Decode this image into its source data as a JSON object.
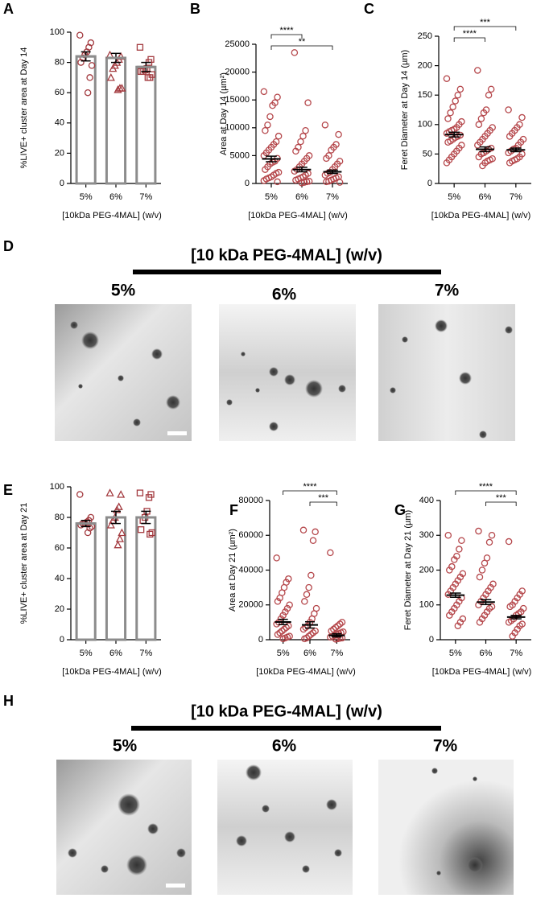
{
  "chart_data": [
    {
      "type": "bar",
      "panel": "A",
      "ylabel": "%LIVE+ cluster area at Day 14",
      "xlabel": "[10kDa PEG-4MAL] (w/v)",
      "categories": [
        "5%",
        "6%",
        "7%"
      ],
      "values": [
        84,
        83,
        77
      ],
      "errors": [
        3,
        3,
        3
      ],
      "points": [
        [
          98,
          93,
          90,
          87,
          85,
          83,
          80,
          78,
          70,
          60
        ],
        [
          85,
          84,
          82,
          80,
          78,
          76,
          70,
          63,
          63,
          62
        ],
        [
          90,
          82,
          80,
          76,
          75,
          74,
          74,
          72,
          70,
          70
        ]
      ],
      "markers": [
        "circle",
        "triangle",
        "square"
      ],
      "color": "#a33a3f",
      "bar_color": "#8c8c8c",
      "ylim": [
        0,
        100
      ],
      "yticks": [
        0,
        20,
        40,
        60,
        80,
        100
      ]
    },
    {
      "type": "dot",
      "panel": "B",
      "ylabel": "Area at Day 14 (µm²)",
      "xlabel": "[10kDa PEG-4MAL] (w/v)",
      "categories": [
        "5%",
        "6%",
        "7%"
      ],
      "values": [
        4400,
        2500,
        2100
      ],
      "errors": [
        500,
        400,
        300
      ],
      "points": [
        [
          16500,
          15500,
          14500,
          14000,
          12000,
          10500,
          9500,
          8500,
          7500,
          7000,
          6500,
          6000,
          5500,
          5000,
          4500,
          4000,
          3800,
          3500,
          3000,
          2500,
          2000,
          1800,
          1500,
          1200,
          1000,
          800,
          500,
          300
        ],
        [
          23500,
          14500,
          9500,
          8500,
          7500,
          6500,
          5800,
          5000,
          4500,
          4000,
          3500,
          3000,
          2500,
          2200,
          1800,
          1500,
          1200,
          1000,
          800,
          600,
          400,
          300,
          200,
          100
        ],
        [
          10500,
          8800,
          7000,
          6500,
          6000,
          5000,
          4500,
          4000,
          3500,
          3000,
          2500,
          2000,
          1800,
          1500,
          1200,
          1000,
          800,
          600,
          400,
          300,
          200
        ]
      ],
      "marker": "circle",
      "color": "#b5474b",
      "brackets": [
        {
          "between": [
            "5%",
            "6%"
          ],
          "label": "****"
        },
        {
          "between": [
            "5%",
            "7%"
          ],
          "label": "**"
        }
      ],
      "ylim": [
        0,
        25000
      ],
      "yticks": [
        0,
        5000,
        10000,
        15000,
        20000,
        25000
      ]
    },
    {
      "type": "dot",
      "panel": "C",
      "ylabel": "Feret Diameter at Day 14 (µm)",
      "xlabel": "[10kDa PEG-4MAL] (w/v)",
      "categories": [
        "5%",
        "6%",
        "7%"
      ],
      "values": [
        83,
        58,
        57
      ],
      "errors": [
        4,
        4,
        3
      ],
      "points": [
        [
          178,
          160,
          150,
          140,
          130,
          120,
          110,
          105,
          100,
          95,
          92,
          90,
          88,
          85,
          82,
          80,
          78,
          75,
          72,
          70,
          65,
          60,
          55,
          50,
          45,
          40,
          35
        ],
        [
          192,
          160,
          150,
          125,
          120,
          110,
          100,
          95,
          90,
          85,
          80,
          75,
          70,
          65,
          60,
          58,
          55,
          52,
          50,
          45,
          42,
          40,
          38,
          35,
          30
        ],
        [
          125,
          112,
          100,
          95,
          90,
          85,
          80,
          75,
          70,
          65,
          60,
          58,
          55,
          52,
          50,
          45,
          42,
          40,
          38,
          35
        ]
      ],
      "marker": "circle",
      "color": "#b5474b",
      "brackets": [
        {
          "between": [
            "5%",
            "7%"
          ],
          "label": "***"
        },
        {
          "between": [
            "5%",
            "6%"
          ],
          "label": "****"
        }
      ],
      "ylim": [
        0,
        250
      ],
      "yticks": [
        0,
        50,
        100,
        150,
        200,
        250
      ]
    },
    {
      "type": "bar",
      "panel": "E",
      "ylabel": "%LIVE+ cluster area at Day 21",
      "xlabel": "[10kDa PEG-4MAL] (w/v)",
      "categories": [
        "5%",
        "6%",
        "7%"
      ],
      "values": [
        76,
        80,
        80
      ],
      "errors": [
        2,
        4,
        4
      ],
      "points": [
        [
          95,
          80,
          78,
          77,
          76,
          76,
          75,
          74,
          73,
          70
        ],
        [
          96,
          95,
          87,
          85,
          80,
          78,
          75,
          70,
          66,
          62
        ],
        [
          96,
          95,
          93,
          84,
          80,
          78,
          72,
          70,
          69
        ]
      ],
      "markers": [
        "circle",
        "triangle",
        "square"
      ],
      "color": "#a33a3f",
      "bar_color": "#8c8c8c",
      "ylim": [
        0,
        100
      ],
      "yticks": [
        0,
        20,
        40,
        60,
        80,
        100
      ]
    },
    {
      "type": "dot",
      "panel": "F",
      "ylabel": "Area at Day 21 (µm²)",
      "xlabel": "[10kDa PEG-4MAL] (w/v)",
      "categories": [
        "5%",
        "6%",
        "7%"
      ],
      "values": [
        10200,
        8500,
        2500
      ],
      "errors": [
        1500,
        1800,
        900
      ],
      "points": [
        [
          47000,
          35000,
          33000,
          30000,
          27000,
          24000,
          22000,
          20000,
          18000,
          16000,
          14000,
          12000,
          10000,
          9000,
          8000,
          7000,
          6000,
          5000,
          4000,
          3000,
          2000,
          1500,
          1000,
          500
        ],
        [
          63000,
          62000,
          57000,
          37000,
          30000,
          26000,
          22000,
          18000,
          15000,
          12000,
          10000,
          8000,
          7000,
          6000,
          5000,
          4000,
          3000,
          2000,
          1000,
          500
        ],
        [
          50000,
          10000,
          9000,
          8000,
          7000,
          6000,
          5000,
          4500,
          4000,
          3500,
          3000,
          2500,
          2000,
          1500,
          1000,
          800,
          500,
          300
        ]
      ],
      "marker": "circle",
      "color": "#b5474b",
      "brackets": [
        {
          "between": [
            "5%",
            "7%"
          ],
          "label": "****"
        },
        {
          "between": [
            "6%",
            "7%"
          ],
          "label": "***"
        }
      ],
      "ylim": [
        0,
        80000
      ],
      "yticks": [
        0,
        20000,
        40000,
        60000,
        80000
      ]
    },
    {
      "type": "dot",
      "panel": "G",
      "ylabel": "Feret Diameter at Day 21 (µm)",
      "xlabel": "[10kDa PEG-4MAL] (w/v)",
      "categories": [
        "5%",
        "6%",
        "7%"
      ],
      "values": [
        128,
        108,
        65
      ],
      "errors": [
        6,
        7,
        5
      ],
      "points": [
        [
          300,
          285,
          260,
          240,
          230,
          210,
          200,
          190,
          180,
          170,
          160,
          150,
          140,
          130,
          120,
          110,
          100,
          90,
          80,
          70,
          60,
          50,
          40
        ],
        [
          312,
          300,
          280,
          235,
          220,
          200,
          180,
          160,
          150,
          140,
          130,
          120,
          110,
          100,
          95,
          90,
          80,
          70,
          60,
          50
        ],
        [
          282,
          140,
          130,
          120,
          110,
          100,
          95,
          90,
          80,
          75,
          70,
          60,
          55,
          50,
          45,
          40,
          30,
          20,
          10
        ]
      ],
      "marker": "circle",
      "color": "#b5474b",
      "brackets": [
        {
          "between": [
            "5%",
            "7%"
          ],
          "label": "****"
        },
        {
          "between": [
            "6%",
            "7%"
          ],
          "label": "***"
        }
      ],
      "ylim": [
        0,
        400
      ],
      "yticks": [
        0,
        100,
        200,
        300,
        400
      ]
    }
  ],
  "image_rows": [
    {
      "panel": "D",
      "title": "[10 kDa PEG-4MAL] (w/v)",
      "labels": [
        "5%",
        "6%",
        "7%"
      ]
    },
    {
      "panel": "H",
      "title": "[10 kDa PEG-4MAL] (w/v)",
      "labels": [
        "5%",
        "6%",
        "7%"
      ]
    }
  ]
}
